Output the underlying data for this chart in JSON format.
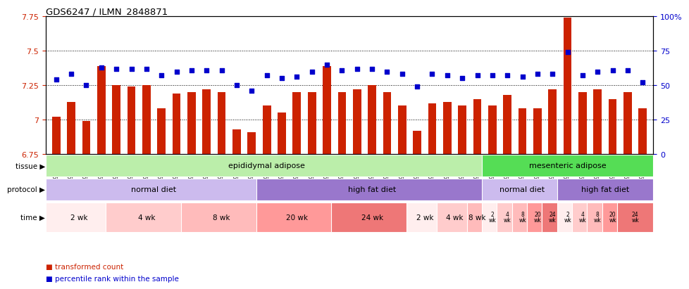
{
  "title": "GDS6247 / ILMN_2848871",
  "samples": [
    "GSM971546",
    "GSM971547",
    "GSM971548",
    "GSM971549",
    "GSM971550",
    "GSM971551",
    "GSM971552",
    "GSM971553",
    "GSM971554",
    "GSM971555",
    "GSM971556",
    "GSM971557",
    "GSM971558",
    "GSM971559",
    "GSM971560",
    "GSM971561",
    "GSM971562",
    "GSM971563",
    "GSM971564",
    "GSM971565",
    "GSM971566",
    "GSM971567",
    "GSM971568",
    "GSM971569",
    "GSM971570",
    "GSM971571",
    "GSM971572",
    "GSM971573",
    "GSM971574",
    "GSM971575",
    "GSM971576",
    "GSM971577",
    "GSM971578",
    "GSM971579",
    "GSM971580",
    "GSM971581",
    "GSM971582",
    "GSM971583",
    "GSM971584",
    "GSM971585"
  ],
  "bar_values": [
    7.02,
    7.13,
    6.99,
    7.39,
    7.25,
    7.24,
    7.25,
    7.08,
    7.19,
    7.2,
    7.22,
    7.2,
    6.93,
    6.91,
    7.1,
    7.05,
    7.2,
    7.2,
    7.39,
    7.2,
    7.22,
    7.25,
    7.2,
    7.1,
    6.92,
    7.12,
    7.13,
    7.1,
    7.15,
    7.1,
    7.18,
    7.08,
    7.08,
    7.22,
    7.74,
    7.2,
    7.22,
    7.15,
    7.2,
    7.08
  ],
  "percentile_values": [
    54,
    58,
    50,
    63,
    62,
    62,
    62,
    57,
    60,
    61,
    61,
    61,
    50,
    46,
    57,
    55,
    56,
    60,
    65,
    61,
    62,
    62,
    60,
    58,
    49,
    58,
    57,
    55,
    57,
    57,
    57,
    56,
    58,
    58,
    74,
    57,
    60,
    61,
    61,
    52
  ],
  "bar_color": "#cc2200",
  "dot_color": "#0000cc",
  "ylim_left": [
    6.75,
    7.75
  ],
  "ylim_right": [
    0,
    100
  ],
  "yticks_left": [
    6.75,
    7.0,
    7.25,
    7.5,
    7.75
  ],
  "ytick_labels_left": [
    "6.75",
    "7",
    "7.25",
    "7.5",
    "7.75"
  ],
  "yticks_right": [
    0,
    25,
    50,
    75,
    100
  ],
  "ytick_labels_right": [
    "0",
    "25",
    "50",
    "75",
    "100%"
  ],
  "grid_values": [
    7.0,
    7.25,
    7.5
  ],
  "background_color": "#ffffff",
  "plot_bg_color": "#ffffff",
  "tissue_groups": [
    {
      "label": "epididymal adipose",
      "start": 0,
      "end": 29,
      "color": "#bbeeaa"
    },
    {
      "label": "mesenteric adipose",
      "start": 29,
      "end": 40,
      "color": "#55dd55"
    }
  ],
  "protocol_groups": [
    {
      "label": "normal diet",
      "start": 0,
      "end": 14,
      "color": "#ccbbee"
    },
    {
      "label": "high fat diet",
      "start": 14,
      "end": 29,
      "color": "#9977cc"
    },
    {
      "label": "normal diet",
      "start": 29,
      "end": 34,
      "color": "#ccbbee"
    },
    {
      "label": "high fat diet",
      "start": 34,
      "end": 40,
      "color": "#9977cc"
    }
  ],
  "time_groups_large": [
    {
      "label": "2 wk",
      "start": 0,
      "end": 4,
      "color": "#ffeeee"
    },
    {
      "label": "4 wk",
      "start": 4,
      "end": 9,
      "color": "#ffcccc"
    },
    {
      "label": "8 wk",
      "start": 9,
      "end": 14,
      "color": "#ffbbbb"
    },
    {
      "label": "20 wk",
      "start": 14,
      "end": 19,
      "color": "#ff9999"
    },
    {
      "label": "24 wk",
      "start": 19,
      "end": 24,
      "color": "#ee7777"
    },
    {
      "label": "2 wk",
      "start": 24,
      "end": 26,
      "color": "#ffeeee"
    },
    {
      "label": "4 wk",
      "start": 26,
      "end": 28,
      "color": "#ffcccc"
    },
    {
      "label": "8 wk",
      "start": 28,
      "end": 29,
      "color": "#ffbbbb"
    }
  ],
  "time_groups_small": [
    {
      "label": "2\nwk",
      "start": 29,
      "end": 30,
      "color": "#ffeeee"
    },
    {
      "label": "4\nwk",
      "start": 30,
      "end": 31,
      "color": "#ffcccc"
    },
    {
      "label": "8\nwk",
      "start": 31,
      "end": 32,
      "color": "#ffbbbb"
    },
    {
      "label": "20\nwk",
      "start": 32,
      "end": 33,
      "color": "#ff9999"
    },
    {
      "label": "24\nwk",
      "start": 33,
      "end": 34,
      "color": "#ee7777"
    },
    {
      "label": "2\nwk",
      "start": 34,
      "end": 35,
      "color": "#ffeeee"
    },
    {
      "label": "4\nwk",
      "start": 35,
      "end": 36,
      "color": "#ffcccc"
    },
    {
      "label": "8\nwk",
      "start": 36,
      "end": 37,
      "color": "#ffbbbb"
    },
    {
      "label": "20\nwk",
      "start": 37,
      "end": 38,
      "color": "#ff9999"
    },
    {
      "label": "24\nwk",
      "start": 38,
      "end": 40,
      "color": "#ee7777"
    }
  ]
}
